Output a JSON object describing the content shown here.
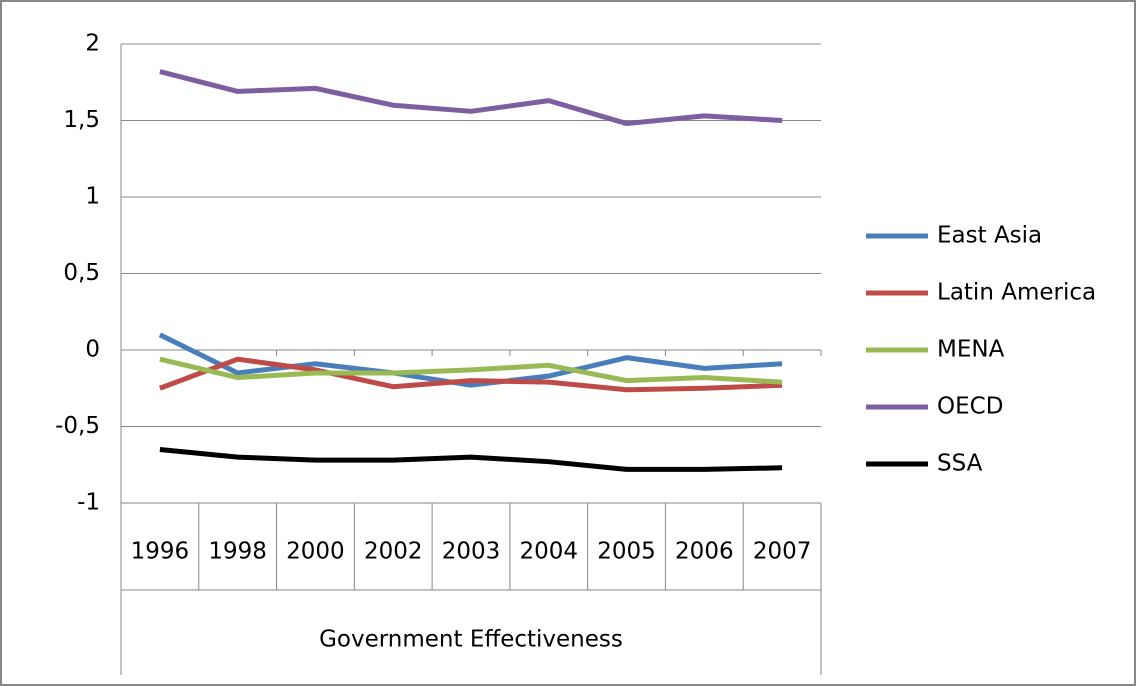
{
  "chart_data": {
    "type": "line",
    "categories": [
      "1996",
      "1998",
      "2000",
      "2002",
      "2003",
      "2004",
      "2005",
      "2006",
      "2007"
    ],
    "x_axis_label": "Government Effectiveness",
    "series": [
      {
        "name": "East Asia",
        "color": "#4a7ebb",
        "values": [
          0.1,
          -0.15,
          -0.09,
          -0.15,
          -0.23,
          -0.17,
          -0.05,
          -0.12,
          -0.09
        ]
      },
      {
        "name": "Latin America",
        "color": "#be4b48",
        "values": [
          -0.25,
          -0.06,
          -0.13,
          -0.24,
          -0.2,
          -0.21,
          -0.26,
          -0.25,
          -0.23
        ]
      },
      {
        "name": "MENA",
        "color": "#98b954",
        "values": [
          -0.06,
          -0.18,
          -0.15,
          -0.15,
          -0.13,
          -0.1,
          -0.2,
          -0.18,
          -0.21
        ]
      },
      {
        "name": "OECD",
        "color": "#7d5fa0",
        "values": [
          1.82,
          1.69,
          1.71,
          1.6,
          1.56,
          1.63,
          1.48,
          1.53,
          1.5
        ]
      },
      {
        "name": "SSA",
        "color": "#000000",
        "values": [
          -0.65,
          -0.7,
          -0.72,
          -0.72,
          -0.7,
          -0.73,
          -0.78,
          -0.78,
          -0.77
        ]
      }
    ],
    "ylim": [
      -1,
      2
    ],
    "yticks": [
      -1,
      {
        "value": -0.5,
        "label": "-0,5"
      },
      0,
      {
        "value": 0.5,
        "label": "0,5"
      },
      1,
      {
        "value": 1.5,
        "label": "1,5"
      },
      2
    ],
    "grid": true,
    "legend": "right"
  }
}
